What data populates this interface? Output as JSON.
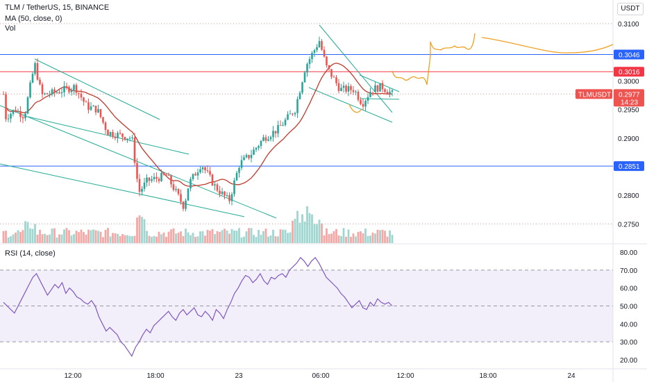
{
  "symbol_legend": "TLM / TetherUS, 15, BINANCE",
  "ma_legend": "MA (50, close, 0)",
  "vol_legend": "Vol",
  "rsi_legend": "RSI (14, close)",
  "unit_label": "USDT",
  "colors": {
    "up": "#26a69a",
    "down": "#ef5350",
    "vol_up": "#9fd6cf",
    "vol_down": "#f5a7a6",
    "ma": "#c0392b",
    "rsi": "#7e57c2",
    "rsi_band": "#f3effa",
    "level_blue": "#2962ff",
    "level_red": "#f23645",
    "trendline": "#22ab94",
    "projection": "#f0a020",
    "dotted": "#f08c8c"
  },
  "chart_data": [
    {
      "type": "candlestick",
      "y_ticks": [
        "0.3100",
        "0.3050",
        "0.3000",
        "0.2950",
        "0.2900",
        "0.2850",
        "0.2800",
        "0.2750"
      ],
      "x_ticks": [
        "12:00",
        "18:00",
        "23",
        "06:00",
        "12:00",
        "18:00",
        "24"
      ],
      "ylim": [
        0.2725,
        0.3125
      ],
      "horizontal_levels": [
        {
          "label": "0.3046",
          "value": 0.3046,
          "color": "blue"
        },
        {
          "label": "0.3016",
          "value": 0.3016,
          "color": "red"
        },
        {
          "label": "0.2851",
          "value": 0.2851,
          "color": "blue"
        }
      ],
      "last_price": {
        "symbol": "TLMUSDT",
        "price": "0.2977",
        "countdown": "14:23"
      },
      "ma_period": 50,
      "annotations": [
        "descending channel trendlines",
        "falling wedge trendlines",
        "orange projected price path"
      ]
    },
    {
      "type": "line",
      "name": "RSI (14, close)",
      "y_ticks": [
        "80.00",
        "70.00",
        "60.00",
        "50.00",
        "40.00",
        "30.00",
        "20.00"
      ],
      "ylim": [
        17,
        83
      ],
      "bands": [
        70,
        30
      ],
      "midline": 50,
      "values": [
        52,
        50,
        48,
        46,
        50,
        54,
        58,
        62,
        66,
        68,
        64,
        60,
        56,
        59,
        62,
        60,
        63,
        57,
        60,
        58,
        55,
        54,
        52,
        51,
        53,
        50,
        44,
        40,
        36,
        38,
        36,
        34,
        30,
        28,
        25,
        22,
        27,
        30,
        34,
        37,
        35,
        39,
        41,
        43,
        45,
        47,
        44,
        42,
        46,
        48,
        45,
        47,
        49,
        45,
        44,
        47,
        45,
        42,
        48,
        46,
        43,
        48,
        52,
        57,
        60,
        64,
        67,
        66,
        63,
        65,
        68,
        64,
        62,
        66,
        65,
        67,
        68,
        66,
        70,
        72,
        74,
        77,
        75,
        72,
        75,
        77,
        74,
        70,
        66,
        64,
        62,
        60,
        57,
        55,
        52,
        49,
        51,
        53,
        49,
        48,
        52,
        50,
        54,
        52,
        51,
        52,
        50
      ]
    }
  ]
}
